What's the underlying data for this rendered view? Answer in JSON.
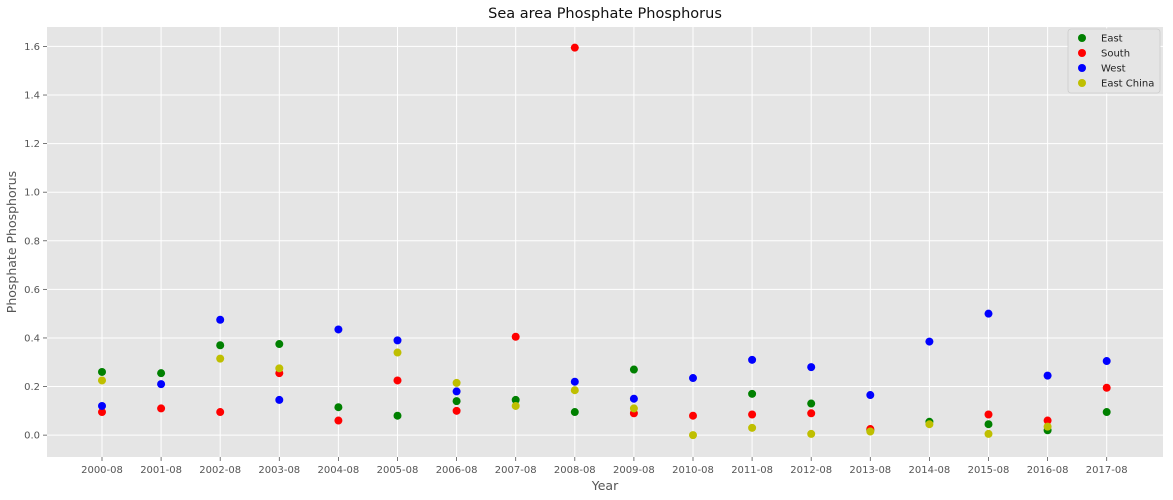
{
  "chart_data": {
    "type": "scatter",
    "title": "Sea area Phosphate Phosphorus",
    "xlabel": "Year",
    "ylabel": "Phosphate Phosphorus",
    "categories": [
      "2000-08",
      "2001-08",
      "2002-08",
      "2003-08",
      "2004-08",
      "2005-08",
      "2006-08",
      "2007-08",
      "2008-08",
      "2009-08",
      "2010-08",
      "2011-08",
      "2012-08",
      "2013-08",
      "2014-08",
      "2015-08",
      "2016-08",
      "2017-08"
    ],
    "ylim": [
      -0.09,
      1.68
    ],
    "yticks": [
      0.0,
      0.2,
      0.4,
      0.6,
      0.8,
      1.0,
      1.2,
      1.4,
      1.6
    ],
    "ytick_labels": [
      "0.0",
      "0.2",
      "0.4",
      "0.6",
      "0.8",
      "1.0",
      "1.2",
      "1.4",
      "1.6"
    ],
    "grid": true,
    "legend_position": "top-right",
    "series": [
      {
        "name": "East",
        "color": "#008000",
        "values": [
          0.26,
          0.255,
          0.37,
          0.375,
          0.115,
          0.08,
          0.14,
          0.145,
          0.095,
          0.27,
          null,
          0.17,
          0.13,
          0.02,
          0.055,
          0.045,
          0.02,
          0.095
        ]
      },
      {
        "name": "South",
        "color": "#ff0000",
        "values": [
          0.095,
          0.11,
          0.095,
          0.255,
          0.06,
          0.225,
          0.1,
          0.405,
          1.595,
          0.09,
          0.08,
          0.085,
          0.09,
          0.025,
          null,
          0.085,
          0.06,
          0.195
        ]
      },
      {
        "name": "West",
        "color": "#0000ff",
        "values": [
          0.12,
          0.21,
          0.475,
          0.145,
          0.435,
          0.39,
          0.18,
          null,
          0.22,
          0.15,
          0.235,
          0.31,
          0.28,
          0.165,
          0.385,
          0.5,
          0.245,
          0.305
        ]
      },
      {
        "name": "East China",
        "color": "#bfbf00",
        "values": [
          0.225,
          null,
          0.315,
          0.275,
          null,
          0.34,
          0.215,
          0.12,
          0.185,
          0.11,
          0.0,
          0.03,
          0.005,
          0.015,
          0.045,
          0.005,
          0.035,
          null
        ]
      }
    ]
  }
}
